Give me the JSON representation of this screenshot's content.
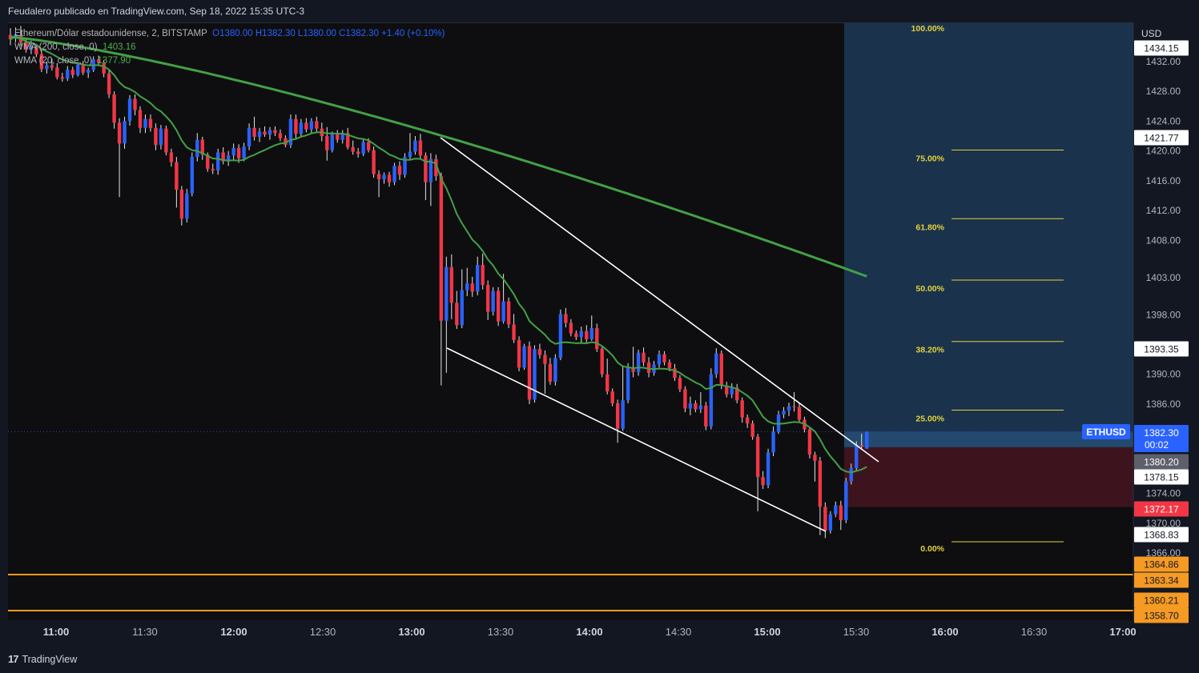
{
  "header": {
    "published_text": "Feudalero publicado en TradingView.com, Sep 18, 2022 15:35 UTC-3"
  },
  "legend": {
    "symbol": "Ethereum/Dólar estadounidense, 2, BITSTAMP",
    "ohlc": "O1380.00  H1382.30  L1380.00  C1382.30  +1.40 (+0.10%)",
    "wma200_label": "WMA (200, close, 0)",
    "wma200_value": "1403.16",
    "wma20_label": "WMA (20, close, 0)",
    "wma20_value": "1377.90"
  },
  "footer": {
    "brand": "TradingView",
    "brand_mark": "17"
  },
  "chart_data": {
    "type": "candlestick",
    "symbol": "ETHUSD",
    "currency": "USD",
    "y_axis_ticks": [
      "1432.00",
      "1428.00",
      "1424.00",
      "1420.00",
      "1416.00",
      "1412.00",
      "1408.00",
      "1403.00",
      "1398.00",
      "1390.00",
      "1386.00",
      "1374.00",
      "1370.00",
      "1366.00"
    ],
    "x_axis_ticks": [
      {
        "label": "11:00",
        "bold": true
      },
      {
        "label": "11:30",
        "bold": false
      },
      {
        "label": "12:00",
        "bold": true
      },
      {
        "label": "12:30",
        "bold": false
      },
      {
        "label": "13:00",
        "bold": true
      },
      {
        "label": "13:30",
        "bold": false
      },
      {
        "label": "14:00",
        "bold": true
      },
      {
        "label": "14:30",
        "bold": false
      },
      {
        "label": "15:00",
        "bold": true
      },
      {
        "label": "15:30",
        "bold": false
      },
      {
        "label": "16:00",
        "bold": true
      },
      {
        "label": "16:30",
        "bold": false
      },
      {
        "label": "17:00",
        "bold": true
      }
    ],
    "price_labels": [
      {
        "text": "1434.15",
        "style": "white"
      },
      {
        "text": "1421.77",
        "style": "white"
      },
      {
        "text": "1393.35",
        "style": "white"
      },
      {
        "text": "1382.30",
        "sub": "00:02",
        "style": "blue"
      },
      {
        "text": "1380.20",
        "style": "gray"
      },
      {
        "text": "1378.15",
        "style": "white"
      },
      {
        "text": "1372.17",
        "style": "red"
      },
      {
        "text": "1368.83",
        "style": "white"
      },
      {
        "text": "1364.86",
        "style": "orange"
      },
      {
        "text": "1363.34",
        "style": "orange"
      },
      {
        "text": "1360.21",
        "style": "orange"
      },
      {
        "text": "1358.70",
        "style": "orange"
      }
    ],
    "symbol_tag": "ETHUSD",
    "fib_levels": [
      "100.00%",
      "75.00%",
      "61.80%",
      "50.00%",
      "38.20%",
      "25.00%",
      "0.00%"
    ],
    "horizontal_lines": [
      1364.0,
      1359.3
    ],
    "candles": [
      {
        "o": 1435.6,
        "h": 1436.5,
        "l": 1434.2,
        "c": 1435.0
      },
      {
        "o": 1435.2,
        "h": 1436.6,
        "l": 1434.6,
        "c": 1435.7
      },
      {
        "o": 1435.5,
        "h": 1436.8,
        "l": 1434.1,
        "c": 1434.6
      },
      {
        "o": 1434.6,
        "h": 1435.2,
        "l": 1433.2,
        "c": 1433.6
      },
      {
        "o": 1433.6,
        "h": 1434.8,
        "l": 1433.0,
        "c": 1434.1
      },
      {
        "o": 1434.0,
        "h": 1434.4,
        "l": 1432.6,
        "c": 1433.0
      },
      {
        "o": 1433.0,
        "h": 1433.6,
        "l": 1430.6,
        "c": 1431.0
      },
      {
        "o": 1431.0,
        "h": 1432.0,
        "l": 1430.4,
        "c": 1431.5
      },
      {
        "o": 1431.5,
        "h": 1432.4,
        "l": 1430.8,
        "c": 1431.2
      },
      {
        "o": 1431.2,
        "h": 1431.8,
        "l": 1429.6,
        "c": 1429.9
      },
      {
        "o": 1429.9,
        "h": 1430.5,
        "l": 1429.3,
        "c": 1429.7
      },
      {
        "o": 1429.7,
        "h": 1431.4,
        "l": 1429.4,
        "c": 1430.9
      },
      {
        "o": 1430.9,
        "h": 1431.3,
        "l": 1429.8,
        "c": 1430.2
      },
      {
        "o": 1430.2,
        "h": 1431.8,
        "l": 1430.0,
        "c": 1431.6
      },
      {
        "o": 1431.6,
        "h": 1432.1,
        "l": 1430.2,
        "c": 1430.5
      },
      {
        "o": 1430.5,
        "h": 1431.2,
        "l": 1429.8,
        "c": 1430.9
      },
      {
        "o": 1430.9,
        "h": 1432.7,
        "l": 1430.6,
        "c": 1432.3
      },
      {
        "o": 1432.3,
        "h": 1432.8,
        "l": 1431.4,
        "c": 1431.8
      },
      {
        "o": 1431.8,
        "h": 1432.2,
        "l": 1429.9,
        "c": 1430.4
      },
      {
        "o": 1430.4,
        "h": 1430.9,
        "l": 1427.1,
        "c": 1427.6
      },
      {
        "o": 1427.6,
        "h": 1428.0,
        "l": 1423.0,
        "c": 1423.8
      },
      {
        "o": 1423.8,
        "h": 1424.4,
        "l": 1413.8,
        "c": 1421.0
      },
      {
        "o": 1421.0,
        "h": 1424.6,
        "l": 1420.3,
        "c": 1424.0
      },
      {
        "o": 1424.0,
        "h": 1427.5,
        "l": 1423.4,
        "c": 1427.0
      },
      {
        "o": 1427.0,
        "h": 1427.6,
        "l": 1424.8,
        "c": 1425.5
      },
      {
        "o": 1425.5,
        "h": 1426.0,
        "l": 1422.4,
        "c": 1423.1
      },
      {
        "o": 1423.1,
        "h": 1424.9,
        "l": 1422.4,
        "c": 1424.3
      },
      {
        "o": 1424.3,
        "h": 1424.9,
        "l": 1422.6,
        "c": 1423.1
      },
      {
        "o": 1423.1,
        "h": 1423.7,
        "l": 1420.1,
        "c": 1420.8
      },
      {
        "o": 1420.8,
        "h": 1423.5,
        "l": 1420.2,
        "c": 1423.0
      },
      {
        "o": 1423.0,
        "h": 1423.4,
        "l": 1419.4,
        "c": 1419.8
      },
      {
        "o": 1419.8,
        "h": 1420.3,
        "l": 1417.9,
        "c": 1418.5
      },
      {
        "o": 1418.5,
        "h": 1419.2,
        "l": 1412.4,
        "c": 1414.8
      },
      {
        "o": 1414.8,
        "h": 1415.3,
        "l": 1410.0,
        "c": 1410.9
      },
      {
        "o": 1410.9,
        "h": 1414.9,
        "l": 1410.4,
        "c": 1414.3
      },
      {
        "o": 1414.3,
        "h": 1419.8,
        "l": 1413.9,
        "c": 1419.2
      },
      {
        "o": 1419.2,
        "h": 1422.4,
        "l": 1418.6,
        "c": 1421.5
      },
      {
        "o": 1421.5,
        "h": 1421.9,
        "l": 1418.8,
        "c": 1419.5
      },
      {
        "o": 1419.5,
        "h": 1419.8,
        "l": 1417.2,
        "c": 1417.6
      },
      {
        "o": 1417.6,
        "h": 1418.3,
        "l": 1416.9,
        "c": 1417.4
      },
      {
        "o": 1417.4,
        "h": 1420.3,
        "l": 1416.8,
        "c": 1419.8
      },
      {
        "o": 1419.8,
        "h": 1420.5,
        "l": 1418.2,
        "c": 1418.6
      },
      {
        "o": 1418.6,
        "h": 1420.0,
        "l": 1418.0,
        "c": 1419.4
      },
      {
        "o": 1419.4,
        "h": 1421.0,
        "l": 1418.7,
        "c": 1420.4
      },
      {
        "o": 1420.4,
        "h": 1420.9,
        "l": 1418.4,
        "c": 1419.0
      },
      {
        "o": 1419.0,
        "h": 1421.1,
        "l": 1418.6,
        "c": 1420.6
      },
      {
        "o": 1420.6,
        "h": 1423.7,
        "l": 1420.1,
        "c": 1423.1
      },
      {
        "o": 1423.1,
        "h": 1424.6,
        "l": 1421.4,
        "c": 1421.9
      },
      {
        "o": 1421.9,
        "h": 1423.1,
        "l": 1421.2,
        "c": 1422.6
      },
      {
        "o": 1422.6,
        "h": 1423.3,
        "l": 1421.9,
        "c": 1422.2
      },
      {
        "o": 1422.2,
        "h": 1423.2,
        "l": 1421.5,
        "c": 1422.8
      },
      {
        "o": 1422.8,
        "h": 1423.3,
        "l": 1422.0,
        "c": 1422.4
      },
      {
        "o": 1422.4,
        "h": 1422.9,
        "l": 1421.3,
        "c": 1421.7
      },
      {
        "o": 1421.7,
        "h": 1422.1,
        "l": 1420.5,
        "c": 1420.8
      },
      {
        "o": 1420.8,
        "h": 1424.9,
        "l": 1420.4,
        "c": 1424.3
      },
      {
        "o": 1424.3,
        "h": 1424.9,
        "l": 1421.5,
        "c": 1422.3
      },
      {
        "o": 1422.3,
        "h": 1424.3,
        "l": 1421.8,
        "c": 1423.8
      },
      {
        "o": 1423.8,
        "h": 1424.4,
        "l": 1422.5,
        "c": 1422.9
      },
      {
        "o": 1422.9,
        "h": 1424.4,
        "l": 1422.4,
        "c": 1424.0
      },
      {
        "o": 1424.0,
        "h": 1424.6,
        "l": 1422.6,
        "c": 1423.0
      },
      {
        "o": 1423.0,
        "h": 1423.8,
        "l": 1421.3,
        "c": 1422.0
      },
      {
        "o": 1422.0,
        "h": 1423.2,
        "l": 1418.7,
        "c": 1420.1
      },
      {
        "o": 1420.1,
        "h": 1422.6,
        "l": 1419.8,
        "c": 1422.2
      },
      {
        "o": 1422.2,
        "h": 1422.8,
        "l": 1421.1,
        "c": 1421.5
      },
      {
        "o": 1421.5,
        "h": 1422.8,
        "l": 1421.0,
        "c": 1422.4
      },
      {
        "o": 1422.4,
        "h": 1423.1,
        "l": 1420.2,
        "c": 1420.5
      },
      {
        "o": 1420.5,
        "h": 1421.4,
        "l": 1419.5,
        "c": 1419.9
      },
      {
        "o": 1419.9,
        "h": 1420.4,
        "l": 1419.1,
        "c": 1419.6
      },
      {
        "o": 1419.6,
        "h": 1421.7,
        "l": 1419.3,
        "c": 1421.2
      },
      {
        "o": 1421.2,
        "h": 1421.7,
        "l": 1419.8,
        "c": 1420.1
      },
      {
        "o": 1420.1,
        "h": 1420.6,
        "l": 1416.4,
        "c": 1416.9
      },
      {
        "o": 1416.9,
        "h": 1417.4,
        "l": 1413.8,
        "c": 1416.2
      },
      {
        "o": 1416.2,
        "h": 1417.1,
        "l": 1415.6,
        "c": 1416.8
      },
      {
        "o": 1416.8,
        "h": 1417.2,
        "l": 1415.2,
        "c": 1415.8
      },
      {
        "o": 1415.8,
        "h": 1418.4,
        "l": 1415.4,
        "c": 1418.0
      },
      {
        "o": 1418.0,
        "h": 1418.6,
        "l": 1416.1,
        "c": 1416.8
      },
      {
        "o": 1416.8,
        "h": 1419.7,
        "l": 1416.4,
        "c": 1419.2
      },
      {
        "o": 1419.2,
        "h": 1422.4,
        "l": 1418.8,
        "c": 1419.9
      },
      {
        "o": 1419.9,
        "h": 1422.0,
        "l": 1419.5,
        "c": 1421.4
      },
      {
        "o": 1421.4,
        "h": 1422.3,
        "l": 1418.9,
        "c": 1419.4
      },
      {
        "o": 1419.4,
        "h": 1419.8,
        "l": 1413.4,
        "c": 1415.8
      },
      {
        "o": 1415.8,
        "h": 1419.7,
        "l": 1412.6,
        "c": 1418.9
      },
      {
        "o": 1418.9,
        "h": 1419.5,
        "l": 1416.0,
        "c": 1416.6
      },
      {
        "o": 1416.6,
        "h": 1417.1,
        "l": 1388.5,
        "c": 1397.2
      },
      {
        "o": 1397.2,
        "h": 1405.8,
        "l": 1390.2,
        "c": 1404.4
      },
      {
        "o": 1404.4,
        "h": 1406.1,
        "l": 1397.4,
        "c": 1399.6
      },
      {
        "o": 1399.6,
        "h": 1401.2,
        "l": 1396.1,
        "c": 1396.6
      },
      {
        "o": 1396.6,
        "h": 1404.1,
        "l": 1396.2,
        "c": 1401.3
      },
      {
        "o": 1401.3,
        "h": 1404.3,
        "l": 1400.5,
        "c": 1402.2
      },
      {
        "o": 1402.2,
        "h": 1403.1,
        "l": 1400.4,
        "c": 1401.1
      },
      {
        "o": 1401.1,
        "h": 1405.8,
        "l": 1400.6,
        "c": 1404.7
      },
      {
        "o": 1404.7,
        "h": 1406.2,
        "l": 1401.4,
        "c": 1402.0
      },
      {
        "o": 1402.0,
        "h": 1402.6,
        "l": 1397.3,
        "c": 1398.4
      },
      {
        "o": 1398.4,
        "h": 1401.7,
        "l": 1397.9,
        "c": 1401.2
      },
      {
        "o": 1401.2,
        "h": 1401.7,
        "l": 1396.5,
        "c": 1397.1
      },
      {
        "o": 1397.1,
        "h": 1403.5,
        "l": 1396.8,
        "c": 1399.8
      },
      {
        "o": 1399.8,
        "h": 1400.3,
        "l": 1396.2,
        "c": 1396.7
      },
      {
        "o": 1396.7,
        "h": 1398.1,
        "l": 1394.2,
        "c": 1394.6
      },
      {
        "o": 1394.6,
        "h": 1395.1,
        "l": 1390.4,
        "c": 1390.9
      },
      {
        "o": 1390.9,
        "h": 1394.1,
        "l": 1390.6,
        "c": 1393.8
      },
      {
        "o": 1393.8,
        "h": 1394.4,
        "l": 1386.0,
        "c": 1386.6
      },
      {
        "o": 1386.6,
        "h": 1393.9,
        "l": 1386.2,
        "c": 1393.4
      },
      {
        "o": 1393.4,
        "h": 1394.1,
        "l": 1392.1,
        "c": 1392.6
      },
      {
        "o": 1392.6,
        "h": 1393.2,
        "l": 1387.4,
        "c": 1391.4
      },
      {
        "o": 1391.4,
        "h": 1392.2,
        "l": 1388.6,
        "c": 1389.0
      },
      {
        "o": 1389.0,
        "h": 1392.7,
        "l": 1388.5,
        "c": 1392.2
      },
      {
        "o": 1392.2,
        "h": 1398.7,
        "l": 1391.9,
        "c": 1398.1
      },
      {
        "o": 1398.1,
        "h": 1398.9,
        "l": 1396.3,
        "c": 1396.9
      },
      {
        "o": 1396.9,
        "h": 1397.4,
        "l": 1395.1,
        "c": 1395.5
      },
      {
        "o": 1395.5,
        "h": 1395.9,
        "l": 1394.6,
        "c": 1395.0
      },
      {
        "o": 1395.0,
        "h": 1396.4,
        "l": 1394.2,
        "c": 1395.8
      },
      {
        "o": 1395.8,
        "h": 1396.6,
        "l": 1394.3,
        "c": 1394.7
      },
      {
        "o": 1394.7,
        "h": 1397.9,
        "l": 1394.5,
        "c": 1396.2
      },
      {
        "o": 1396.2,
        "h": 1396.8,
        "l": 1393.0,
        "c": 1393.4
      },
      {
        "o": 1393.4,
        "h": 1393.7,
        "l": 1389.6,
        "c": 1390.0
      },
      {
        "o": 1390.0,
        "h": 1392.1,
        "l": 1387.3,
        "c": 1387.7
      },
      {
        "o": 1387.7,
        "h": 1388.1,
        "l": 1385.7,
        "c": 1386.1
      },
      {
        "o": 1386.1,
        "h": 1386.6,
        "l": 1380.8,
        "c": 1382.7
      },
      {
        "o": 1382.7,
        "h": 1391.2,
        "l": 1382.4,
        "c": 1386.5
      },
      {
        "o": 1386.5,
        "h": 1391.5,
        "l": 1386.1,
        "c": 1390.9
      },
      {
        "o": 1390.9,
        "h": 1393.7,
        "l": 1389.6,
        "c": 1390.3
      },
      {
        "o": 1390.3,
        "h": 1393.3,
        "l": 1389.8,
        "c": 1392.9
      },
      {
        "o": 1392.9,
        "h": 1393.6,
        "l": 1391.1,
        "c": 1391.6
      },
      {
        "o": 1391.6,
        "h": 1392.3,
        "l": 1389.6,
        "c": 1390.2
      },
      {
        "o": 1390.2,
        "h": 1391.8,
        "l": 1389.8,
        "c": 1391.3
      },
      {
        "o": 1391.3,
        "h": 1393.2,
        "l": 1390.9,
        "c": 1392.7
      },
      {
        "o": 1392.7,
        "h": 1393.1,
        "l": 1391.2,
        "c": 1391.6
      },
      {
        "o": 1391.6,
        "h": 1392.0,
        "l": 1390.4,
        "c": 1390.8
      },
      {
        "o": 1390.8,
        "h": 1391.4,
        "l": 1389.1,
        "c": 1389.5
      },
      {
        "o": 1389.5,
        "h": 1389.9,
        "l": 1387.6,
        "c": 1388.0
      },
      {
        "o": 1388.0,
        "h": 1388.4,
        "l": 1384.9,
        "c": 1385.4
      },
      {
        "o": 1385.4,
        "h": 1387.0,
        "l": 1384.5,
        "c": 1386.1
      },
      {
        "o": 1386.1,
        "h": 1386.5,
        "l": 1384.9,
        "c": 1385.3
      },
      {
        "o": 1385.3,
        "h": 1387.6,
        "l": 1384.8,
        "c": 1385.8
      },
      {
        "o": 1385.8,
        "h": 1386.3,
        "l": 1382.5,
        "c": 1383.0
      },
      {
        "o": 1383.0,
        "h": 1390.8,
        "l": 1382.6,
        "c": 1390.0
      },
      {
        "o": 1390.0,
        "h": 1393.5,
        "l": 1389.5,
        "c": 1392.8
      },
      {
        "o": 1392.8,
        "h": 1393.2,
        "l": 1388.0,
        "c": 1388.5
      },
      {
        "o": 1388.5,
        "h": 1389.0,
        "l": 1386.9,
        "c": 1387.3
      },
      {
        "o": 1387.3,
        "h": 1388.8,
        "l": 1386.8,
        "c": 1388.2
      },
      {
        "o": 1388.2,
        "h": 1388.7,
        "l": 1386.1,
        "c": 1386.5
      },
      {
        "o": 1386.5,
        "h": 1386.9,
        "l": 1383.5,
        "c": 1384.2
      },
      {
        "o": 1384.2,
        "h": 1384.6,
        "l": 1382.8,
        "c": 1383.4
      },
      {
        "o": 1383.4,
        "h": 1383.8,
        "l": 1381.2,
        "c": 1381.6
      },
      {
        "o": 1381.6,
        "h": 1382.0,
        "l": 1371.6,
        "c": 1376.2
      },
      {
        "o": 1376.2,
        "h": 1377.0,
        "l": 1374.6,
        "c": 1375.1
      },
      {
        "o": 1375.1,
        "h": 1380.0,
        "l": 1374.7,
        "c": 1379.5
      },
      {
        "o": 1379.5,
        "h": 1383.0,
        "l": 1379.0,
        "c": 1382.3
      },
      {
        "o": 1382.3,
        "h": 1385.1,
        "l": 1382.0,
        "c": 1384.6
      },
      {
        "o": 1384.6,
        "h": 1385.6,
        "l": 1384.1,
        "c": 1385.1
      },
      {
        "o": 1385.1,
        "h": 1386.2,
        "l": 1384.4,
        "c": 1385.7
      },
      {
        "o": 1385.7,
        "h": 1387.6,
        "l": 1385.0,
        "c": 1385.6
      },
      {
        "o": 1385.6,
        "h": 1386.1,
        "l": 1383.6,
        "c": 1383.9
      },
      {
        "o": 1383.9,
        "h": 1384.3,
        "l": 1382.2,
        "c": 1382.6
      },
      {
        "o": 1382.6,
        "h": 1383.0,
        "l": 1378.7,
        "c": 1379.2
      },
      {
        "o": 1379.2,
        "h": 1379.6,
        "l": 1375.6,
        "c": 1378.4
      },
      {
        "o": 1378.4,
        "h": 1378.9,
        "l": 1368.4,
        "c": 1372.2
      },
      {
        "o": 1372.2,
        "h": 1372.8,
        "l": 1368.0,
        "c": 1369.0
      },
      {
        "o": 1369.0,
        "h": 1371.6,
        "l": 1368.6,
        "c": 1371.2
      },
      {
        "o": 1371.2,
        "h": 1372.9,
        "l": 1370.8,
        "c": 1372.4
      },
      {
        "o": 1372.4,
        "h": 1373.0,
        "l": 1369.1,
        "c": 1370.4
      },
      {
        "o": 1370.4,
        "h": 1376.1,
        "l": 1370.0,
        "c": 1375.6
      },
      {
        "o": 1375.6,
        "h": 1378.0,
        "l": 1375.2,
        "c": 1377.4
      },
      {
        "o": 1377.4,
        "h": 1381.0,
        "l": 1377.0,
        "c": 1380.5
      },
      {
        "o": 1380.5,
        "h": 1382.0,
        "l": 1380.0,
        "c": 1380.3
      },
      {
        "o": 1380.0,
        "h": 1382.3,
        "l": 1380.0,
        "c": 1382.3
      }
    ]
  }
}
